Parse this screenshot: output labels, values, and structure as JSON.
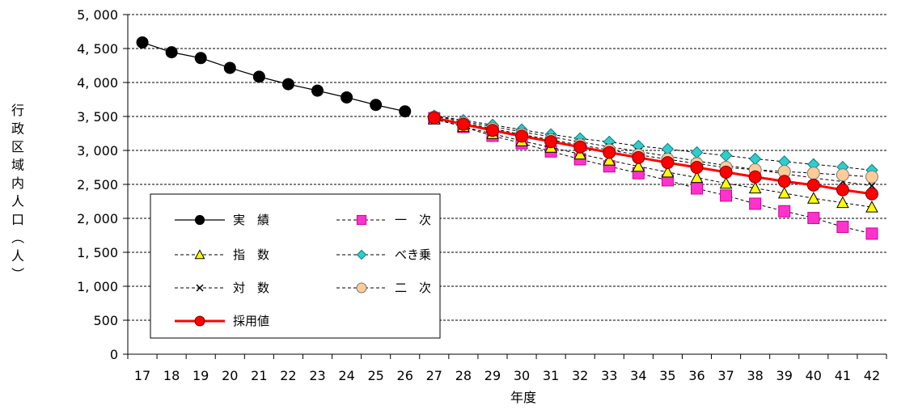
{
  "chart_data": {
    "type": "line",
    "ylabel": "行政区域内人口（人）",
    "xlabel": "年度",
    "categories": [
      "17",
      "18",
      "19",
      "20",
      "21",
      "22",
      "23",
      "24",
      "25",
      "26",
      "27",
      "28",
      "29",
      "30",
      "31",
      "32",
      "33",
      "34",
      "35",
      "36",
      "37",
      "38",
      "39",
      "40",
      "41",
      "42"
    ],
    "y_ticks": [
      "0",
      "500",
      "1, 000",
      "1, 500",
      "2, 000",
      "2, 500",
      "3, 000",
      "3, 500",
      "4, 000",
      "4, 500",
      "5, 000"
    ],
    "ylim": [
      0,
      5000
    ],
    "grid": true,
    "legend_position": "lower-left inside plot",
    "series": [
      {
        "key": "actual",
        "name": "実　績",
        "marker": "circle-filled",
        "line_style": "solid",
        "color": "#000000",
        "values": [
          4590,
          4445,
          4360,
          4215,
          4085,
          3975,
          3880,
          3780,
          3670,
          3575,
          null,
          null,
          null,
          null,
          null,
          null,
          null,
          null,
          null,
          null,
          null,
          null,
          null,
          null,
          null,
          null
        ]
      },
      {
        "key": "linear",
        "name": "一　次",
        "marker": "square",
        "line_style": "dashed",
        "color": "#FF33CC",
        "values": [
          null,
          null,
          null,
          null,
          null,
          null,
          null,
          null,
          null,
          null,
          3475,
          3345,
          3215,
          3105,
          2985,
          2870,
          2765,
          2665,
          2560,
          2440,
          2335,
          2215,
          2105,
          2005,
          1875,
          1775
        ]
      },
      {
        "key": "exponential",
        "name": "指　数",
        "marker": "triangle",
        "line_style": "dashed",
        "color": "#FFFF00",
        "values": [
          null,
          null,
          null,
          null,
          null,
          null,
          null,
          null,
          null,
          null,
          3460,
          3350,
          3245,
          3140,
          3045,
          2945,
          2855,
          2765,
          2680,
          2600,
          2515,
          2445,
          2370,
          2295,
          2230,
          2165
        ]
      },
      {
        "key": "power",
        "name": "べき乗",
        "marker": "diamond",
        "line_style": "dashed",
        "color": "#33CCCC",
        "values": [
          null,
          null,
          null,
          null,
          null,
          null,
          null,
          null,
          null,
          null,
          3510,
          3445,
          3375,
          3305,
          3235,
          3175,
          3125,
          3065,
          3020,
          2970,
          2925,
          2875,
          2835,
          2795,
          2755,
          2710
        ]
      },
      {
        "key": "logarithmic",
        "name": "対　数",
        "marker": "cross",
        "line_style": "dashed",
        "color": "#000000",
        "values": [
          null,
          null,
          null,
          null,
          null,
          null,
          null,
          null,
          null,
          null,
          3505,
          3425,
          3350,
          3275,
          3200,
          3125,
          3055,
          2985,
          2915,
          2845,
          2780,
          2720,
          2655,
          2595,
          2540,
          2480
        ]
      },
      {
        "key": "quadratic",
        "name": "二　次",
        "marker": "circle-open",
        "line_style": "dashed",
        "color": "#FFCC99",
        "values": [
          null,
          null,
          null,
          null,
          null,
          null,
          null,
          null,
          null,
          null,
          3490,
          3405,
          3320,
          3235,
          3155,
          3080,
          3005,
          2935,
          2870,
          2805,
          2750,
          2715,
          2690,
          2665,
          2640,
          2610
        ]
      },
      {
        "key": "adopted",
        "name": "採用値",
        "marker": "circle-red",
        "line_style": "solid-thick",
        "color": "#FF0000",
        "values": [
          null,
          null,
          null,
          null,
          null,
          null,
          null,
          null,
          null,
          null,
          3480,
          3385,
          3295,
          3210,
          3130,
          3050,
          2970,
          2895,
          2820,
          2750,
          2680,
          2610,
          2545,
          2490,
          2420,
          2360
        ]
      }
    ]
  }
}
